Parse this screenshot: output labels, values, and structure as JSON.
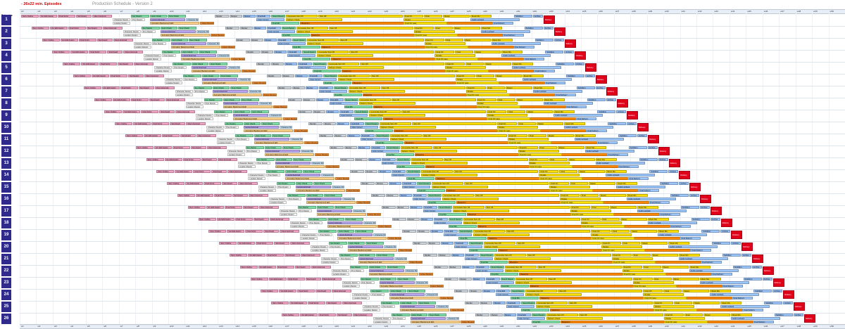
{
  "header": {
    "title": "- 26x22 min. Episodes",
    "subtitle": "Production Schedule - Version 2"
  },
  "corner_label": "Episodes",
  "weeks": [
    "w1",
    "w2",
    "w3",
    "w4",
    "w5",
    "w6",
    "w7",
    "w8",
    "w9",
    "w10",
    "w11",
    "w12",
    "w13",
    "w14",
    "w15",
    "w16",
    "w17",
    "w18",
    "w19",
    "w20",
    "w21",
    "w22",
    "w23",
    "w24",
    "w25",
    "w26",
    "w27",
    "w28",
    "w29",
    "w30",
    "w31",
    "w32",
    "w33",
    "w34",
    "w35",
    "w36",
    "w37",
    "w38",
    "w39",
    "w40",
    "w41",
    "w42",
    "w43",
    "w44",
    "w45",
    "w46",
    "w47",
    "w48",
    "w49",
    "w50"
  ],
  "episodes": [
    "1",
    "2",
    "3",
    "4",
    "5",
    "6",
    "7",
    "8",
    "9",
    "10",
    "11",
    "12",
    "13",
    "14",
    "15",
    "16",
    "17",
    "18",
    "19",
    "20",
    "21",
    "22",
    "23",
    "24",
    "25",
    "26"
  ],
  "stages": [
    {
      "label": "Story Outline",
      "color": "#f4a6c6",
      "lane": 0,
      "offset": 0,
      "len": 25
    },
    {
      "label": "Voc Edit Assign",
      "color": "#f4a6c6",
      "lane": 0,
      "offset": 26,
      "len": 25
    },
    {
      "label": "Final Script",
      "color": "#f4a6c6",
      "lane": 0,
      "offset": 52,
      "len": 25
    },
    {
      "label": "Storyboard",
      "color": "#f4a6c6",
      "lane": 0,
      "offset": 78,
      "len": 22
    },
    {
      "label": "Client Approval",
      "color": "#f4a6c6",
      "lane": 0,
      "offset": 101,
      "len": 28
    },
    {
      "label": "Character Design",
      "color": "#ffffff",
      "lane": 1,
      "offset": 130,
      "len": 25
    },
    {
      "label": "Location Design",
      "color": "#ffffff",
      "lane": 2,
      "offset": 130,
      "len": 25
    },
    {
      "label": "Prop Design",
      "color": "#ffffff",
      "lane": 1,
      "offset": 156,
      "len": 20
    },
    {
      "label": "Key Design",
      "color": "#7fe0a8",
      "lane": 0,
      "offset": 156,
      "len": 26
    },
    {
      "label": "Anim Check",
      "color": "#7fe0a8",
      "lane": 0,
      "offset": 183,
      "len": 24
    },
    {
      "label": "Sync Check",
      "color": "#7fe0a8",
      "lane": 0,
      "offset": 208,
      "len": 26
    },
    {
      "label": "Layout Approval",
      "color": "#b9a6f0",
      "lane": 1,
      "offset": 183,
      "len": 50
    },
    {
      "label": "Character Rig",
      "color": "#c8e6ff",
      "lane": 1,
      "offset": 234,
      "len": 18
    },
    {
      "label": "Animation Background Edit",
      "color": "#ffd38a",
      "lane": 2,
      "offset": 183,
      "len": 70
    },
    {
      "label": "Colour Review",
      "color": "#ff9a3c",
      "lane": 2,
      "offset": 254,
      "len": 20
    },
    {
      "label": "Render",
      "color": "#cfd6de",
      "lane": 0,
      "offset": 275,
      "len": 20
    },
    {
      "label": "Review",
      "color": "#cfd6de",
      "lane": 0,
      "offset": 296,
      "len": 18
    },
    {
      "label": "Review",
      "color": "#9ec9ff",
      "lane": 0,
      "offset": 315,
      "len": 18
    },
    {
      "label": "Final Edit",
      "color": "#9ec9ff",
      "lane": 0,
      "offset": 334,
      "len": 20
    },
    {
      "label": "Color Correct",
      "color": "#9ec9ff",
      "lane": 1,
      "offset": 334,
      "len": 40
    },
    {
      "label": "Sound Design",
      "color": "#7fe0a8",
      "lane": 0,
      "offset": 355,
      "len": 20
    },
    {
      "label": "Final Mix",
      "color": "#7fe0a8",
      "lane": 2,
      "offset": 355,
      "len": 40
    },
    {
      "label": "Composite Sign Off",
      "color": "#ffe100",
      "lane": 0,
      "offset": 376,
      "len": 45
    },
    {
      "label": "Delivery Check",
      "color": "#ffe100",
      "lane": 1,
      "offset": 376,
      "len": 80
    },
    {
      "label": "Mastering",
      "color": "#ff8a00",
      "lane": 2,
      "offset": 396,
      "len": 300
    },
    {
      "label": "Sign Off",
      "color": "#ffe100",
      "lane": 0,
      "offset": 422,
      "len": 120
    },
    {
      "label": "Final QC",
      "color": "#ffe100",
      "lane": 0,
      "offset": 543,
      "len": 28
    },
    {
      "label": "Retake",
      "color": "#ffe100",
      "lane": 1,
      "offset": 543,
      "len": 58
    },
    {
      "label": "Final QC pass",
      "color": "#ffe100",
      "lane": 2,
      "offset": 543,
      "len": 62
    },
    {
      "label": "Final",
      "color": "#ffe100",
      "lane": 0,
      "offset": 572,
      "len": 26
    },
    {
      "label": "Master",
      "color": "#ffe100",
      "lane": 0,
      "offset": 599,
      "len": 38
    },
    {
      "label": "Music Mix",
      "color": "#ffe100",
      "lane": 0,
      "offset": 638,
      "len": 30
    },
    {
      "label": "Audio Layback",
      "color": "#9ec9ff",
      "lane": 1,
      "offset": 638,
      "len": 70
    },
    {
      "label": "Final Delivery",
      "color": "#9ec9ff",
      "lane": 2,
      "offset": 669,
      "len": 30
    },
    {
      "label": "Subtitling",
      "color": "#9ec9ff",
      "lane": 0,
      "offset": 700,
      "len": 26
    },
    {
      "label": "Archive",
      "color": "#9ec9ff",
      "lane": 0,
      "offset": 727,
      "len": 14
    },
    {
      "label": "Delivery",
      "color": "#e0001a",
      "lane": 0,
      "offset": 742,
      "len": 16
    }
  ]
}
